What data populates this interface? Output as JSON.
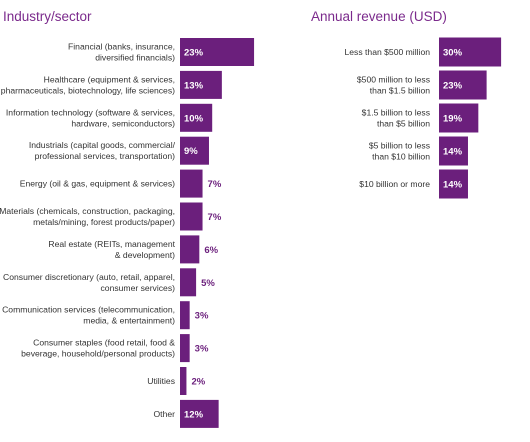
{
  "chart_data": [
    {
      "type": "bar",
      "orientation": "horizontal",
      "title": "Industry/sector",
      "unit": "%",
      "bar_color": "#6b1f7c",
      "value_label_inside_color": "#ffffff",
      "value_label_outside_color": "#6b1f7c",
      "categories": [
        [
          "Financial (banks, insurance,",
          "diversified financials)"
        ],
        [
          "Healthcare (equipment & services,",
          "pharmaceuticals, biotechnology, life sciences)"
        ],
        [
          "Information technology (software & services,",
          "hardware, semiconductors)"
        ],
        [
          "Industrials (capital goods, commercial/",
          "professional services, transportation)"
        ],
        [
          "Energy (oil & gas, equipment & services)"
        ],
        [
          "Materials (chemicals, construction, packaging,",
          "metals/mining, forest products/paper)"
        ],
        [
          "Real estate (REITs, management",
          "& development)"
        ],
        [
          "Consumer discretionary (auto, retail, apparel,",
          "consumer services)"
        ],
        [
          "Communication services (telecommunication,",
          "media, & entertainment)"
        ],
        [
          "Consumer staples (food retail, food &",
          "beverage, household/personal products)"
        ],
        [
          "Utilities"
        ],
        [
          "Other"
        ]
      ],
      "values": [
        23,
        13,
        10,
        9,
        7,
        7,
        6,
        5,
        3,
        3,
        2,
        12
      ],
      "value_labels": [
        "23%",
        "13%",
        "10%",
        "9%",
        "7%",
        "7%",
        "6%",
        "5%",
        "3%",
        "3%",
        "2%",
        "12%"
      ]
    },
    {
      "type": "bar",
      "orientation": "horizontal",
      "title": "Annual revenue (USD)",
      "unit": "%",
      "bar_color": "#6b1f7c",
      "value_label_inside_color": "#ffffff",
      "categories": [
        [
          "Less than $500 million"
        ],
        [
          "$500 million to less",
          "than $1.5 billion"
        ],
        [
          "$1.5 billion to less",
          "than $5 billion"
        ],
        [
          "$5 billion to less",
          "than $10 billion"
        ],
        [
          "$10 billion or more"
        ]
      ],
      "values": [
        30,
        23,
        19,
        14,
        14
      ],
      "value_labels": [
        "30%",
        "23%",
        "19%",
        "14%",
        "14%"
      ]
    }
  ]
}
